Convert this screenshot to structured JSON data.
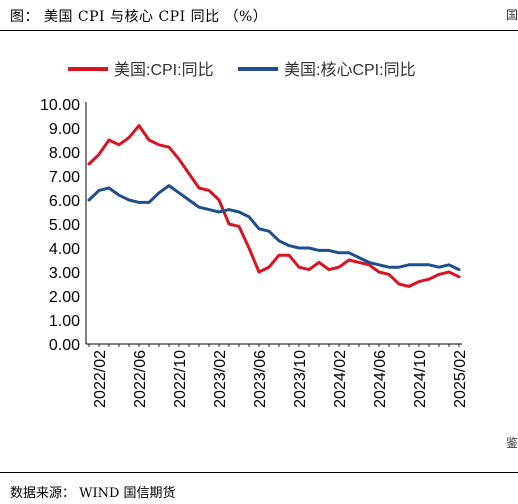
{
  "header": {
    "title": "图：  美国 CPI 与核心 CPI 同比 （%）",
    "edge_glyph_top": "国",
    "edge_glyph_bottom": "鉴"
  },
  "footer": {
    "source": "数据来源：  WIND  国信期货"
  },
  "colors": {
    "cpi": "#d7141f",
    "core_cpi": "#1f4e8c"
  },
  "chart_data": {
    "type": "line",
    "x": [
      "2022/01",
      "2022/02",
      "2022/03",
      "2022/04",
      "2022/05",
      "2022/06",
      "2022/07",
      "2022/08",
      "2022/09",
      "2022/10",
      "2022/11",
      "2022/12",
      "2023/01",
      "2023/02",
      "2023/03",
      "2023/04",
      "2023/05",
      "2023/06",
      "2023/07",
      "2023/08",
      "2023/09",
      "2023/10",
      "2023/11",
      "2023/12",
      "2024/01",
      "2024/02",
      "2024/03",
      "2024/04",
      "2024/05",
      "2024/06",
      "2024/07",
      "2024/08",
      "2024/09",
      "2024/10",
      "2024/11",
      "2024/12",
      "2025/01",
      "2025/02"
    ],
    "tick_labels": [
      "2022/02",
      "2022/06",
      "2022/10",
      "2023/02",
      "2023/06",
      "2023/10",
      "2024/02",
      "2024/06",
      "2024/10",
      "2025/02"
    ],
    "series": [
      {
        "name": "美国:CPI:同比",
        "color": "#d7141f",
        "values": [
          7.5,
          7.9,
          8.5,
          8.3,
          8.6,
          9.1,
          8.5,
          8.3,
          8.2,
          7.7,
          7.1,
          6.5,
          6.4,
          6.0,
          5.0,
          4.9,
          4.0,
          3.0,
          3.2,
          3.7,
          3.7,
          3.2,
          3.1,
          3.4,
          3.1,
          3.2,
          3.5,
          3.4,
          3.3,
          3.0,
          2.9,
          2.5,
          2.4,
          2.6,
          2.7,
          2.9,
          3.0,
          2.8
        ]
      },
      {
        "name": "美国:核心CPI:同比",
        "color": "#1f4e8c",
        "values": [
          6.0,
          6.4,
          6.5,
          6.2,
          6.0,
          5.9,
          5.9,
          6.3,
          6.6,
          6.3,
          6.0,
          5.7,
          5.6,
          5.5,
          5.6,
          5.5,
          5.3,
          4.8,
          4.7,
          4.3,
          4.1,
          4.0,
          4.0,
          3.9,
          3.9,
          3.8,
          3.8,
          3.6,
          3.4,
          3.3,
          3.2,
          3.2,
          3.3,
          3.3,
          3.3,
          3.2,
          3.3,
          3.1
        ]
      }
    ],
    "yticks": [
      "0.00",
      "1.00",
      "2.00",
      "3.00",
      "4.00",
      "5.00",
      "6.00",
      "7.00",
      "8.00",
      "9.00",
      "10.00"
    ],
    "ylim": [
      0,
      10
    ],
    "grid": false,
    "legend_position": "top"
  }
}
